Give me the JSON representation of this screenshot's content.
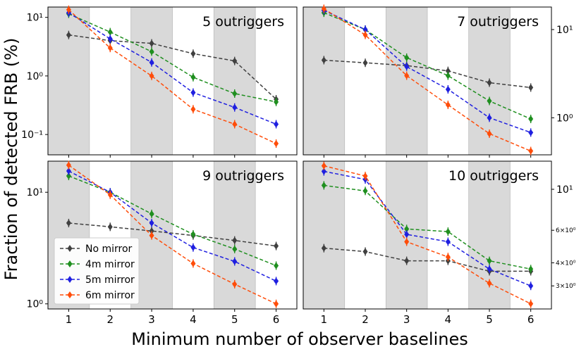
{
  "figure": {
    "ylabel": "Fraction of detected FRB (%)",
    "xlabel": "Minimum number of observer baselines"
  },
  "colors": {
    "No mirror": "#404040",
    "4m mirror": "#1f8f1f",
    "5m mirror": "#1f1fe0",
    "6m mirror": "#ff4d0a",
    "band": "#d9d9d9"
  },
  "legend": [
    "No mirror",
    "4m mirror",
    "5m mirror",
    "6m mirror"
  ],
  "chart_data": [
    {
      "type": "line",
      "title": "5 outriggers",
      "y_scale": "log",
      "ylim": [
        0.045,
        15
      ],
      "x": [
        1,
        2,
        3,
        4,
        5,
        6
      ],
      "yticks": [
        0.1,
        1,
        10
      ],
      "ytick_labels": [
        "10⁻¹",
        "10⁰",
        "10¹"
      ],
      "series": [
        {
          "name": "No mirror",
          "values": [
            5.0,
            4.0,
            3.6,
            2.4,
            1.8,
            0.4
          ]
        },
        {
          "name": "4m mirror",
          "values": [
            11.5,
            5.6,
            2.6,
            0.95,
            0.5,
            0.36
          ]
        },
        {
          "name": "5m mirror",
          "values": [
            12.0,
            4.3,
            1.7,
            0.52,
            0.29,
            0.15
          ]
        },
        {
          "name": "6m mirror",
          "values": [
            13.5,
            3.0,
            1.0,
            0.27,
            0.15,
            0.07
          ]
        }
      ]
    },
    {
      "type": "line",
      "title": "7 outriggers",
      "y_scale": "log",
      "ylim": [
        0.38,
        18
      ],
      "x": [
        1,
        2,
        3,
        4,
        5,
        6
      ],
      "yticks": [
        1,
        10
      ],
      "ytick_labels": [
        "10⁰",
        "10¹"
      ],
      "series": [
        {
          "name": "No mirror",
          "values": [
            4.5,
            4.2,
            3.9,
            3.4,
            2.5,
            2.2
          ]
        },
        {
          "name": "4m mirror",
          "values": [
            15.5,
            10.0,
            4.8,
            3.0,
            1.55,
            0.97
          ]
        },
        {
          "name": "5m mirror",
          "values": [
            16.5,
            10.0,
            3.8,
            2.1,
            1.0,
            0.68
          ]
        },
        {
          "name": "6m mirror",
          "values": [
            17.2,
            8.7,
            3.0,
            1.4,
            0.66,
            0.42
          ]
        }
      ]
    },
    {
      "type": "line",
      "title": "9 outriggers",
      "y_scale": "log",
      "ylim": [
        0.9,
        19
      ],
      "x": [
        1,
        2,
        3,
        4,
        5,
        6
      ],
      "yticks": [
        1,
        10
      ],
      "ytick_labels": [
        "10⁰",
        "10¹"
      ],
      "series": [
        {
          "name": "No mirror",
          "values": [
            5.3,
            4.9,
            4.5,
            4.1,
            3.7,
            3.3
          ]
        },
        {
          "name": "4m mirror",
          "values": [
            14.0,
            10.0,
            6.4,
            4.2,
            3.1,
            2.2
          ]
        },
        {
          "name": "5m mirror",
          "values": [
            15.5,
            10.0,
            5.3,
            3.2,
            2.4,
            1.6
          ]
        },
        {
          "name": "6m mirror",
          "values": [
            17.5,
            9.5,
            4.1,
            2.3,
            1.5,
            1.0
          ]
        }
      ]
    },
    {
      "type": "line",
      "title": "10 outriggers",
      "y_scale": "log",
      "ylim": [
        2.25,
        14.2
      ],
      "x": [
        1,
        2,
        3,
        4,
        5,
        6
      ],
      "yticks": [
        3,
        4,
        6,
        10
      ],
      "ytick_labels": [
        "3×10⁰",
        "4×10⁰",
        "6×10⁰",
        "10¹"
      ],
      "series": [
        {
          "name": "No mirror",
          "values": [
            4.8,
            4.6,
            4.1,
            4.1,
            3.6,
            3.6
          ]
        },
        {
          "name": "4m mirror",
          "values": [
            10.5,
            9.8,
            6.1,
            5.9,
            4.1,
            3.7
          ]
        },
        {
          "name": "5m mirror",
          "values": [
            12.5,
            11.3,
            5.7,
            5.2,
            3.7,
            3.0
          ]
        },
        {
          "name": "6m mirror",
          "values": [
            13.4,
            11.8,
            5.2,
            4.3,
            3.1,
            2.4
          ]
        }
      ]
    }
  ]
}
